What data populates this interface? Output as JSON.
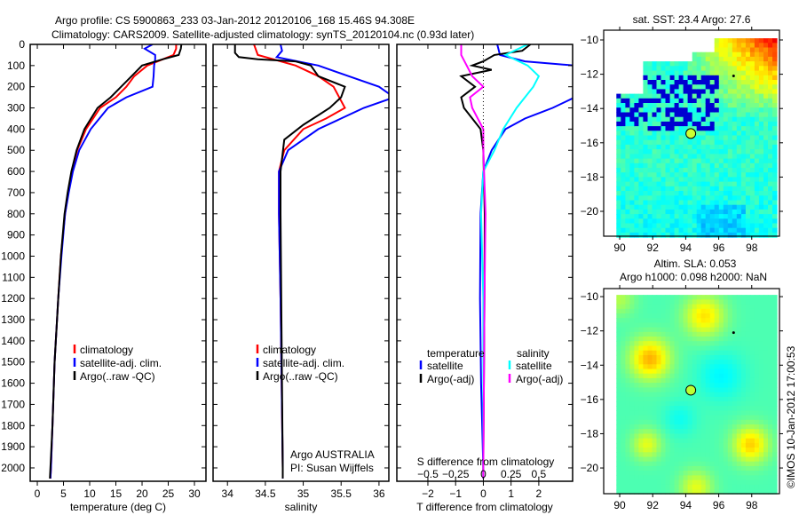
{
  "title_line1": "Argo profile: CS 5900863_233 03-Jan-2012 20120106_168 15.46S 94.308E",
  "title_line2": "Climatology: CARS2009. Satellite-adjusted climatology: synTS_20120104.nc (0.93d later)",
  "copyright": "©IMOS 10-Jan-2012 17:00:53",
  "chart_data": [
    {
      "id": "temperature",
      "type": "line",
      "xlabel": "temperature (deg C)",
      "ylabel": "",
      "xlim": [
        -1.36,
        32.2
      ],
      "ylim": [
        2063,
        0
      ],
      "xticks": [
        0,
        5,
        10,
        15,
        20,
        25,
        30
      ],
      "yticks": [
        0,
        100,
        200,
        300,
        400,
        500,
        600,
        700,
        800,
        900,
        1000,
        1100,
        1200,
        1300,
        1400,
        1500,
        1600,
        1700,
        1800,
        1900,
        2000
      ],
      "legend": [
        "climatology",
        "satellite-adj. clim.",
        "Argo(..raw -QC)"
      ],
      "series": [
        {
          "name": "climatology",
          "color": "#ff0000",
          "depth": [
            0,
            20,
            50,
            70,
            100,
            150,
            200,
            250,
            300,
            400,
            500,
            600,
            700,
            800,
            1000,
            1200,
            1500,
            1800,
            2000,
            2050
          ],
          "values": [
            26.5,
            26.5,
            26,
            24,
            21,
            18.5,
            17,
            15,
            12,
            9.3,
            7.6,
            6.6,
            5.9,
            5.3,
            4.5,
            4,
            3.3,
            2.9,
            2.6,
            2.5
          ]
        },
        {
          "name": "satellite-adj. clim.",
          "color": "#0000ff",
          "depth": [
            0,
            20,
            50,
            70,
            100,
            150,
            200,
            250,
            300,
            400,
            500,
            600,
            700,
            800,
            1000,
            1200,
            1500,
            1800,
            2000,
            2050
          ],
          "values": [
            22,
            20.5,
            22.5,
            22.5,
            22.3,
            22.2,
            22,
            17,
            13.5,
            10.2,
            8,
            6.8,
            6,
            5.3,
            4.6,
            4,
            3.3,
            2.9,
            2.6,
            2.5
          ]
        },
        {
          "name": "Argo(..raw -QC)",
          "color": "#000000",
          "depth": [
            0,
            20,
            50,
            70,
            100,
            150,
            200,
            250,
            300,
            400,
            500,
            600,
            700,
            800,
            1000,
            1200,
            1500,
            1800,
            2000,
            2050
          ],
          "values": [
            27.5,
            27.4,
            27,
            24,
            20,
            18,
            16,
            14,
            11.5,
            9,
            7.5,
            6.5,
            5.8,
            5.2,
            4.5,
            4,
            3.3,
            2.9,
            2.5,
            2.4
          ]
        }
      ]
    },
    {
      "id": "salinity",
      "type": "line",
      "xlabel": "salinity",
      "xlim": [
        33.81,
        36.13
      ],
      "ylim": [
        2063,
        0
      ],
      "xticks": [
        34,
        34.5,
        35,
        35.5,
        36
      ],
      "legend": [
        "climatology",
        "satellite-adj. clim.",
        "Argo(..raw -QC)"
      ],
      "annotations": [
        "Argo AUSTRALIA",
        "PI: Susan Wijffels"
      ],
      "series": [
        {
          "name": "climatology",
          "color": "#ff0000",
          "depth": [
            0,
            50,
            100,
            150,
            200,
            300,
            350,
            400,
            500,
            600,
            800,
            1200,
            2000,
            2050
          ],
          "values": [
            34.35,
            34.4,
            34.9,
            35.2,
            35.4,
            35.55,
            35.3,
            35.0,
            34.75,
            34.68,
            34.68,
            34.7,
            34.73,
            34.73
          ]
        },
        {
          "name": "satellite-adj. clim.",
          "color": "#0000ff",
          "depth": [
            0,
            30,
            60,
            100,
            150,
            200,
            250,
            300,
            400,
            500,
            600,
            800,
            1200,
            2000,
            2050
          ],
          "values": [
            34.7,
            34.72,
            34.65,
            35.2,
            35.6,
            36.0,
            36.2,
            35.8,
            35.2,
            34.8,
            34.68,
            34.68,
            34.7,
            34.73,
            34.73
          ]
        },
        {
          "name": "Argo(..raw -QC)",
          "color": "#000000",
          "depth": [
            0,
            40,
            60,
            70,
            80,
            100,
            150,
            200,
            250,
            300,
            380,
            450,
            600,
            800,
            1200,
            2000,
            2050
          ],
          "values": [
            34.1,
            34.1,
            34.15,
            34.4,
            34.9,
            35.1,
            35.2,
            35.55,
            35.5,
            35.35,
            35.0,
            34.75,
            34.7,
            34.7,
            34.71,
            34.73,
            34.73
          ]
        }
      ]
    },
    {
      "id": "difference",
      "type": "line",
      "xlabel": "T difference from climatology",
      "x2label": "S difference from climatology",
      "xlim": [
        -3.12,
        3.22
      ],
      "ylim": [
        2063,
        0
      ],
      "xticks": [
        -2,
        -1,
        0,
        1,
        2
      ],
      "x2ticks": [
        -0.5,
        -0.25,
        0,
        0.25,
        0.5
      ],
      "legend_titles": [
        "temperature",
        "salinity"
      ],
      "legend": [
        "satellite",
        "Argo(-adj)",
        "satellite",
        "Argo(-adj)"
      ],
      "series": [
        {
          "name": "T satellite",
          "color": "#0000ff",
          "scale": "T",
          "depth": [
            0,
            50,
            80,
            100,
            200,
            250,
            300,
            350,
            400,
            500,
            600,
            800,
            1200,
            1600,
            2000,
            2050
          ],
          "values": [
            0.5,
            0.6,
            1.5,
            3.3,
            3.3,
            3.3,
            2.5,
            1.5,
            0.8,
            0.3,
            0,
            -0.1,
            -0.12,
            -0.08,
            0,
            0
          ]
        },
        {
          "name": "T Argo(-adj)",
          "color": "#000000",
          "scale": "T",
          "depth": [
            0,
            30,
            50,
            80,
            100,
            120,
            150,
            200,
            250,
            300,
            400,
            500,
            800,
            1200,
            2000,
            2050
          ],
          "values": [
            1.7,
            1.4,
            0.4,
            0,
            -0.4,
            0.3,
            -0.8,
            -0.3,
            -0.8,
            -0.7,
            -0.1,
            0,
            0.05,
            0.04,
            0,
            0
          ]
        },
        {
          "name": "S satellite",
          "color": "#00ffff",
          "scale": "S",
          "depth": [
            0,
            50,
            100,
            150,
            200,
            300,
            400,
            500,
            600,
            800,
            1200,
            2000,
            2050
          ],
          "values": [
            0.4,
            0.2,
            0.4,
            0.5,
            0.45,
            0.3,
            0.18,
            0.1,
            0,
            -0.02,
            0,
            0,
            0
          ]
        },
        {
          "name": "S Argo(-adj)",
          "color": "#ff00ff",
          "scale": "S",
          "depth": [
            0,
            50,
            100,
            150,
            200,
            250,
            300,
            400,
            500,
            800,
            1200,
            2000,
            2050
          ],
          "values": [
            -0.2,
            -0.2,
            -0.15,
            -0.1,
            0,
            -0.12,
            -0.1,
            0,
            0,
            0.02,
            0.01,
            0,
            0
          ]
        }
      ]
    },
    {
      "id": "sst-map",
      "type": "heatmap",
      "title": "sat. SST: 23.4 Argo: 27.6",
      "xlim": [
        89.03,
        99.68
      ],
      "ylim": [
        -21.45,
        -9.43
      ],
      "xticks": [
        90,
        92,
        94,
        96,
        98
      ],
      "yticks": [
        -10,
        -12,
        -14,
        -16,
        -18,
        -20
      ],
      "argo_position": {
        "lon": 94.308,
        "lat": -15.46
      }
    },
    {
      "id": "sla-map",
      "type": "heatmap",
      "title_line1": "Altim. SLA: 0.053",
      "title_line2": "Argo h1000: 0.098 h2000: NaN",
      "xlim": [
        89.03,
        99.68
      ],
      "ylim": [
        -21.5,
        -9.53
      ],
      "xticks": [
        90,
        92,
        94,
        96,
        98
      ],
      "yticks": [
        -10,
        -12,
        -14,
        -16,
        -18,
        -20
      ],
      "argo_position": {
        "lon": 94.308,
        "lat": -15.46
      }
    }
  ]
}
